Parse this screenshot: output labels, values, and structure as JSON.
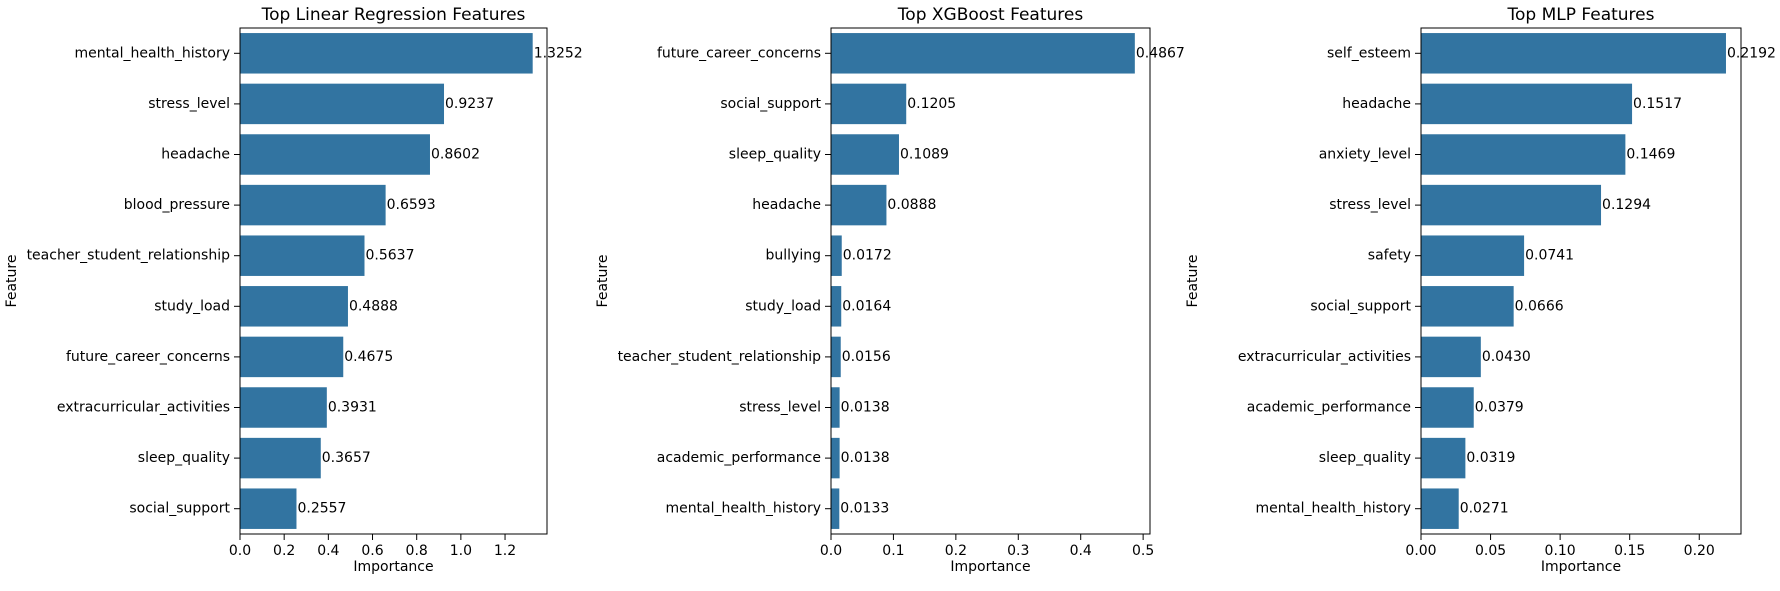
{
  "chart_data": [
    {
      "type": "bar",
      "orientation": "horizontal",
      "title": "Top Linear Regression Features",
      "xlabel": "Importance",
      "ylabel": "Feature",
      "xlim": [
        0,
        1.39
      ],
      "xticks": [
        0.0,
        0.2,
        0.4,
        0.6,
        0.8,
        1.0,
        1.2
      ],
      "xtick_labels": [
        "0.0",
        "0.2",
        "0.4",
        "0.6",
        "0.8",
        "1.0",
        "1.2"
      ],
      "grid": false,
      "bar_color": "#3274a1",
      "categories": [
        "mental_health_history",
        "stress_level",
        "headache",
        "blood_pressure",
        "teacher_student_relationship",
        "study_load",
        "future_career_concerns",
        "extracurricular_activities",
        "sleep_quality",
        "social_support"
      ],
      "values": [
        1.3252,
        0.9237,
        0.8602,
        0.6593,
        0.5637,
        0.4888,
        0.4675,
        0.3931,
        0.3657,
        0.2557
      ],
      "value_labels": [
        "1.3252",
        "0.9237",
        "0.8602",
        "0.6593",
        "0.5637",
        "0.4888",
        "0.4675",
        "0.3931",
        "0.3657",
        "0.2557"
      ]
    },
    {
      "type": "bar",
      "orientation": "horizontal",
      "title": "Top XGBoost Features",
      "xlabel": "Importance",
      "ylabel": "Feature",
      "xlim": [
        0,
        0.511
      ],
      "xticks": [
        0.0,
        0.1,
        0.2,
        0.3,
        0.4,
        0.5
      ],
      "xtick_labels": [
        "0.0",
        "0.1",
        "0.2",
        "0.3",
        "0.4",
        "0.5"
      ],
      "grid": false,
      "bar_color": "#3274a1",
      "categories": [
        "future_career_concerns",
        "social_support",
        "sleep_quality",
        "headache",
        "bullying",
        "study_load",
        "teacher_student_relationship",
        "stress_level",
        "academic_performance",
        "mental_health_history"
      ],
      "values": [
        0.4867,
        0.1205,
        0.1089,
        0.0888,
        0.0172,
        0.0164,
        0.0156,
        0.0138,
        0.0138,
        0.0133
      ],
      "value_labels": [
        "0.4867",
        "0.1205",
        "0.1089",
        "0.0888",
        "0.0172",
        "0.0164",
        "0.0156",
        "0.0138",
        "0.0138",
        "0.0133"
      ]
    },
    {
      "type": "bar",
      "orientation": "horizontal",
      "title": "Top MLP Features",
      "xlabel": "Importance",
      "ylabel": "Feature",
      "xlim": [
        0,
        0.23
      ],
      "xticks": [
        0.0,
        0.05,
        0.1,
        0.15,
        0.2
      ],
      "xtick_labels": [
        "0.00",
        "0.05",
        "0.10",
        "0.15",
        "0.20"
      ],
      "grid": false,
      "bar_color": "#3274a1",
      "categories": [
        "self_esteem",
        "headache",
        "anxiety_level",
        "stress_level",
        "safety",
        "social_support",
        "extracurricular_activities",
        "academic_performance",
        "sleep_quality",
        "mental_health_history"
      ],
      "values": [
        0.2192,
        0.1517,
        0.1469,
        0.1294,
        0.0741,
        0.0666,
        0.043,
        0.0379,
        0.0319,
        0.0271
      ],
      "value_labels": [
        "0.2192",
        "0.1517",
        "0.1469",
        "0.1294",
        "0.0741",
        "0.0666",
        "0.0430",
        "0.0379",
        "0.0319",
        "0.0271"
      ]
    }
  ]
}
